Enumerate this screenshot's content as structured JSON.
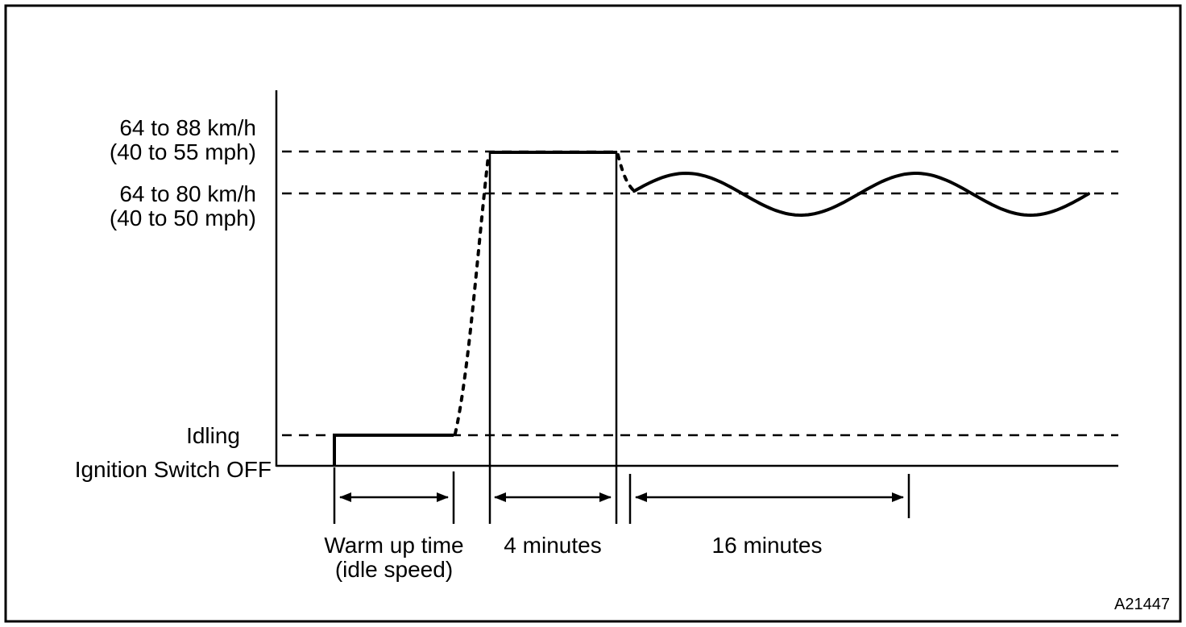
{
  "diagram": {
    "title": "drive-pattern-speed-vs-time",
    "y_axis_labels": {
      "high_speed_line1": "64 to 88 km/h",
      "high_speed_line2": "(40 to 55 mph)",
      "cruise_speed_line1": "64 to 80 km/h",
      "cruise_speed_line2": "(40 to 50 mph)",
      "idling": "Idling",
      "ignition_off": "Ignition Switch OFF"
    },
    "phase_labels": {
      "warm_up_line1": "Warm up time",
      "warm_up_line2": "(idle speed)",
      "phase_2": "4 minutes",
      "phase_3": "16 minutes"
    },
    "figure_code": "A21447",
    "colors": {
      "line": "#000000",
      "background": "#ffffff"
    }
  }
}
